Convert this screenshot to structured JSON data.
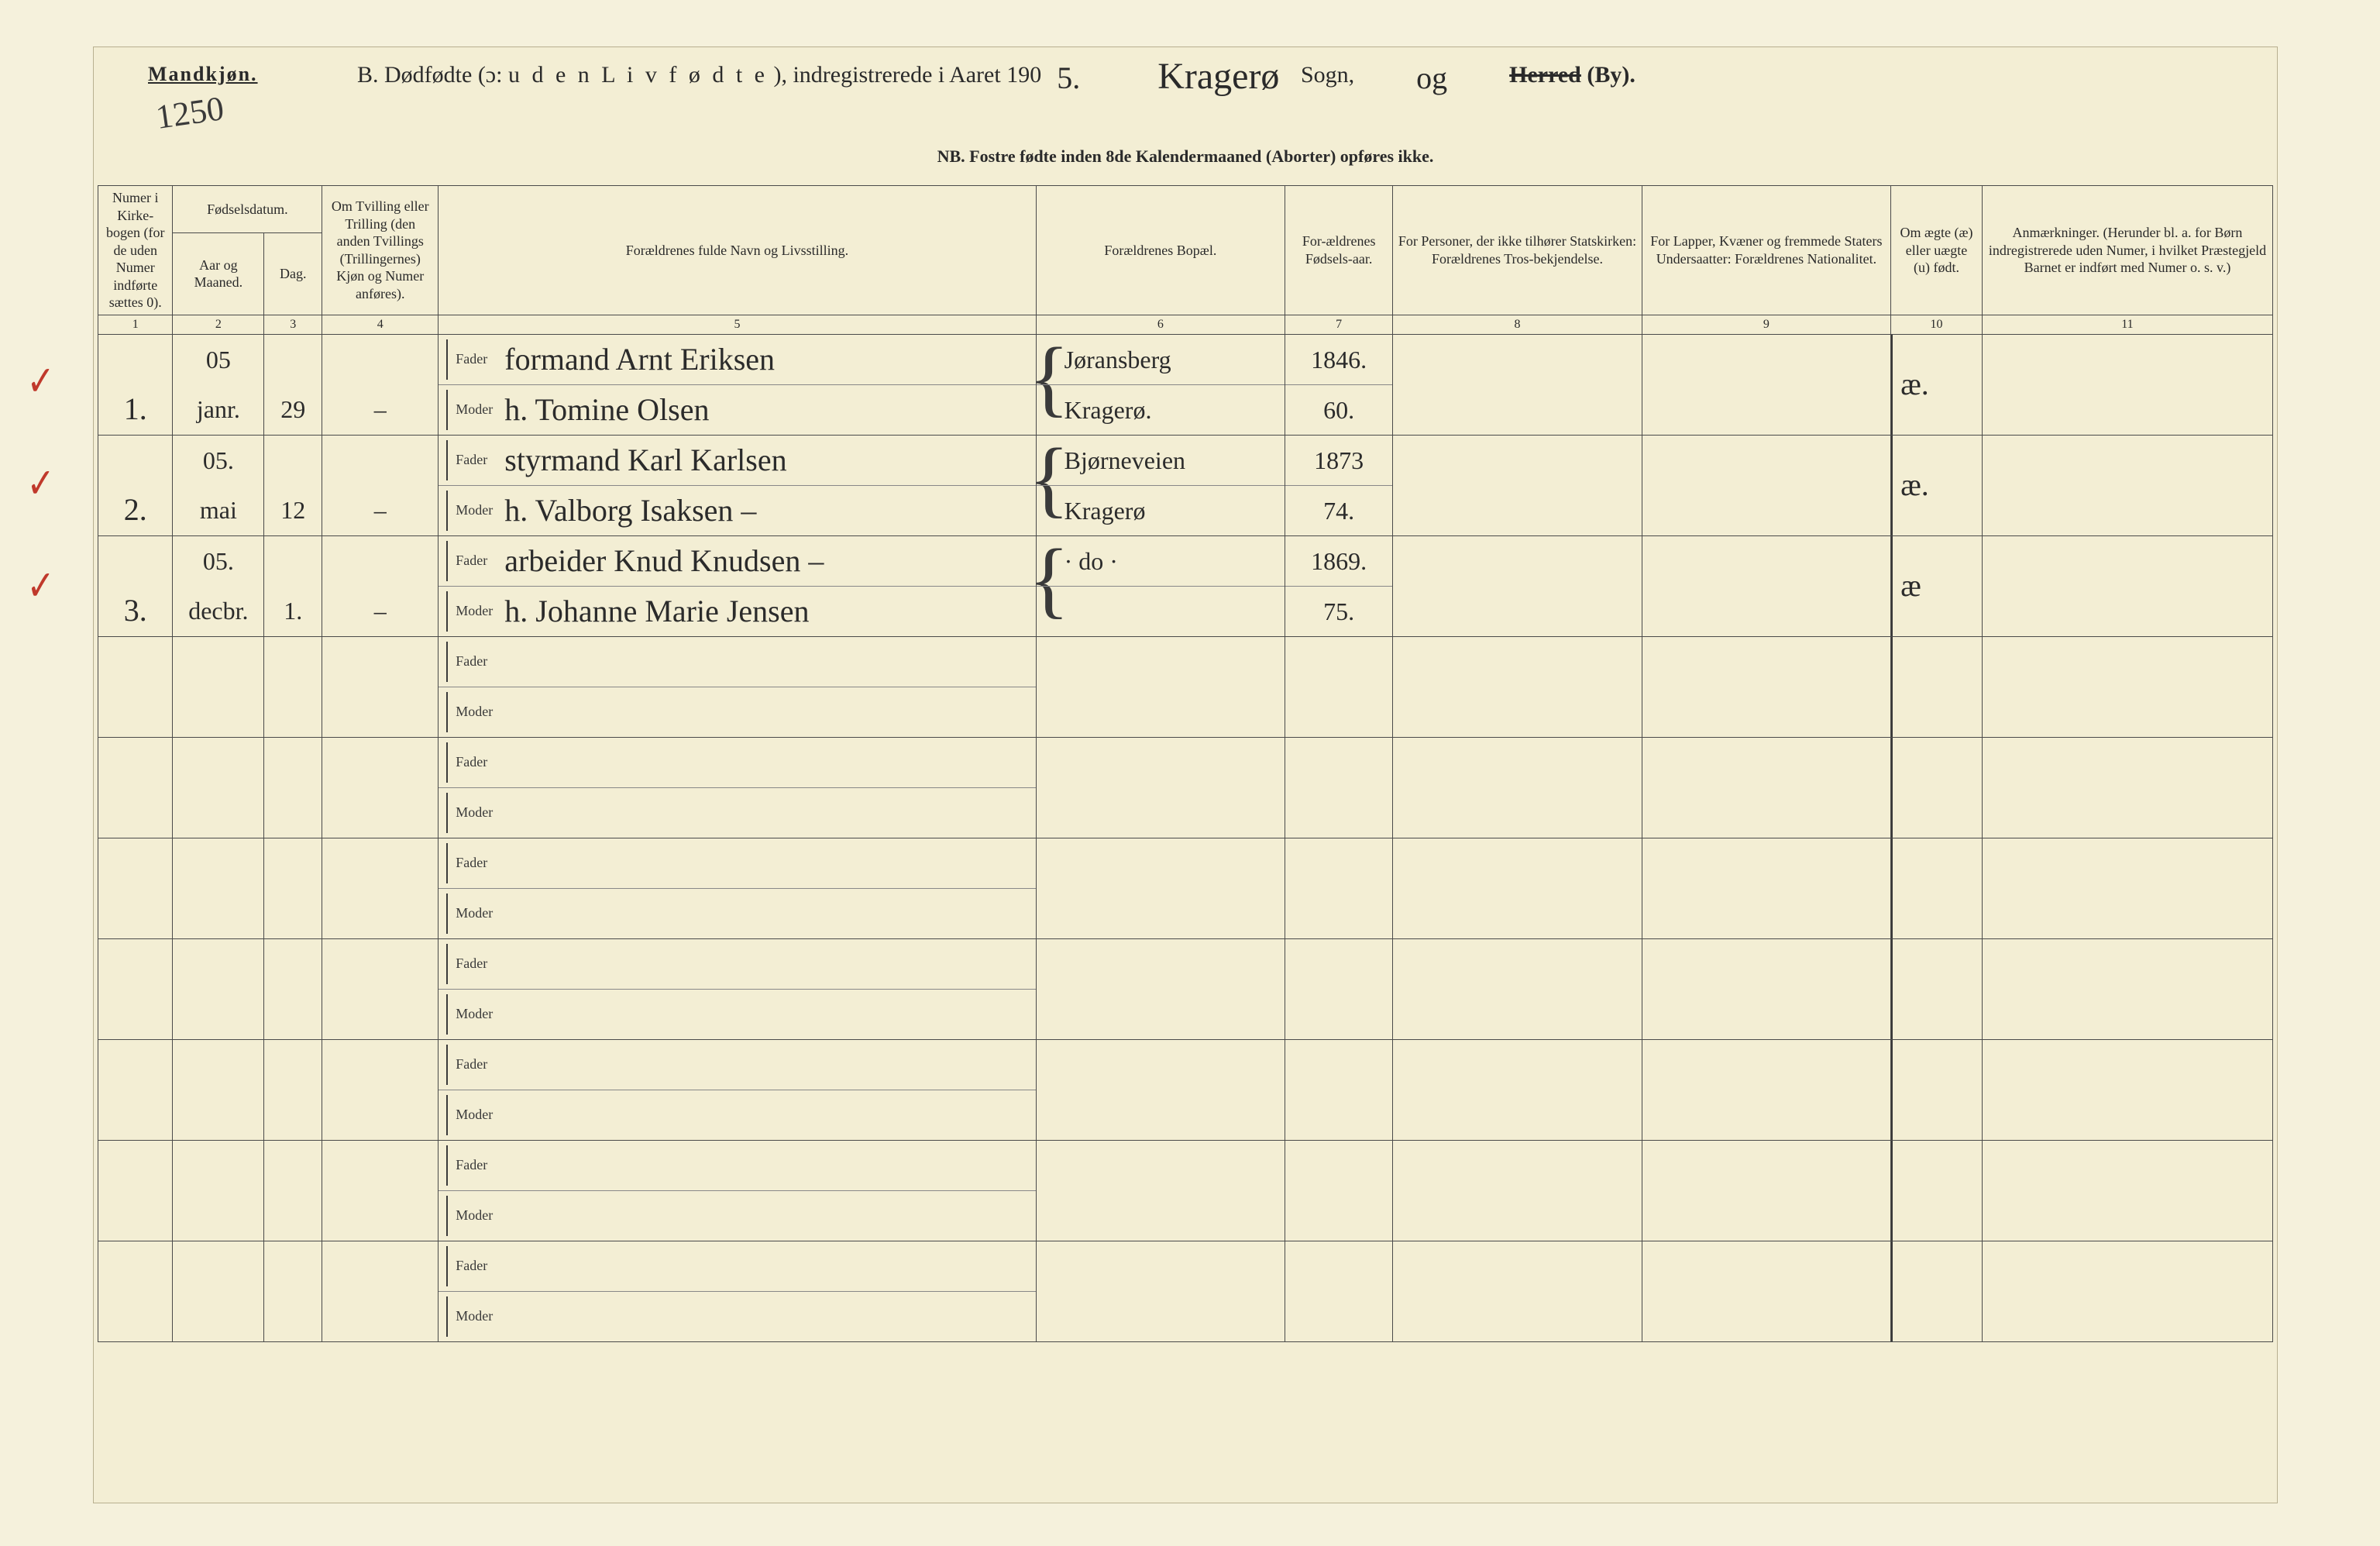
{
  "header": {
    "gender_label": "Mandkjøn.",
    "page_number_hand": "1250",
    "title_prefix": "B.  Dødfødte (ɔ:",
    "title_spaced": "u d e n  L i v  f ø d t e",
    "title_suffix1": "), indregistrerede i Aaret 190",
    "year_last_digit": "5.",
    "parish_hand": "Kragerø",
    "label_sogn": "Sogn,",
    "middle_hand": "og",
    "label_herred_struck": "Herred",
    "label_by": "(By).",
    "subtitle": "NB.  Fostre fødte inden 8de Kalendermaaned (Aborter) opføres ikke."
  },
  "columns": {
    "c1": "Numer i Kirke-bogen (for de uden Numer indførte sættes 0).",
    "c2_group": "Fødselsdatum.",
    "c2": "Aar og Maaned.",
    "c3": "Dag.",
    "c4": "Om Tvilling eller Trilling (den anden Tvillings (Trillingernes) Kjøn og Numer anføres).",
    "c5": "Forældrenes fulde Navn og Livsstilling.",
    "c6": "Forældrenes Bopæl.",
    "c7": "For-ældrenes Fødsels-aar.",
    "c8": "For Personer, der ikke tilhører Statskirken: Forældrenes Tros-bekjendelse.",
    "c9": "For Lapper, Kvæner og fremmede Staters Undersaatter: Forældrenes Nationalitet.",
    "c10": "Om ægte (æ) eller uægte (u) født.",
    "c11": "Anmærkninger. (Herunder bl. a. for Børn indregistrerede uden Numer, i hvilket Præstegjeld Barnet er indført med Numer o. s. v.)",
    "numbers": [
      "1",
      "2",
      "3",
      "4",
      "5",
      "6",
      "7",
      "8",
      "9",
      "10",
      "11"
    ]
  },
  "row_labels": {
    "fader": "Fader",
    "moder": "Moder"
  },
  "entries": [
    {
      "checked": true,
      "num": "1.",
      "year": "05",
      "month": "janr.",
      "day": "29",
      "twin": "–",
      "fader_name": "formand Arnt Eriksen",
      "moder_name": "h. Tomine Olsen",
      "fader_bopael": "Jøransberg",
      "moder_bopael": "Kragerø.",
      "fader_year": "1846.",
      "moder_year": "60.",
      "c8": "",
      "c9": "",
      "legit": "æ.",
      "notes": ""
    },
    {
      "checked": true,
      "num": "2.",
      "year": "05.",
      "month": "mai",
      "day": "12",
      "twin": "–",
      "fader_name": "styrmand Karl Karlsen",
      "moder_name": "h. Valborg Isaksen –",
      "fader_bopael": "Bjørneveien",
      "moder_bopael": "Kragerø",
      "fader_year": "1873",
      "moder_year": "74.",
      "c8": "",
      "c9": "",
      "legit": "æ.",
      "notes": ""
    },
    {
      "checked": true,
      "num": "3.",
      "year": "05.",
      "month": "decbr.",
      "day": "1.",
      "twin": "–",
      "fader_name": "arbeider Knud Knudsen –",
      "moder_name": "h. Johanne Marie Jensen",
      "fader_bopael": "·    do  ·",
      "moder_bopael": "",
      "fader_year": "1869.",
      "moder_year": "75.",
      "c8": "",
      "c9": "",
      "legit": "æ",
      "notes": ""
    }
  ],
  "blank_rows": 7,
  "style": {
    "paper_bg": "#f3eed4",
    "ink": "#2a2a2a",
    "hand_ink": "#2b2b2b",
    "red_check": "#c0392b",
    "rule": "#4a4a4a",
    "print_font": "Georgia, 'Times New Roman', serif",
    "hand_font": "'Brush Script MT', cursive",
    "header_fontsize_pt": 22,
    "body_fontsize_pt": 14,
    "hand_fontsize_pt": 30
  }
}
